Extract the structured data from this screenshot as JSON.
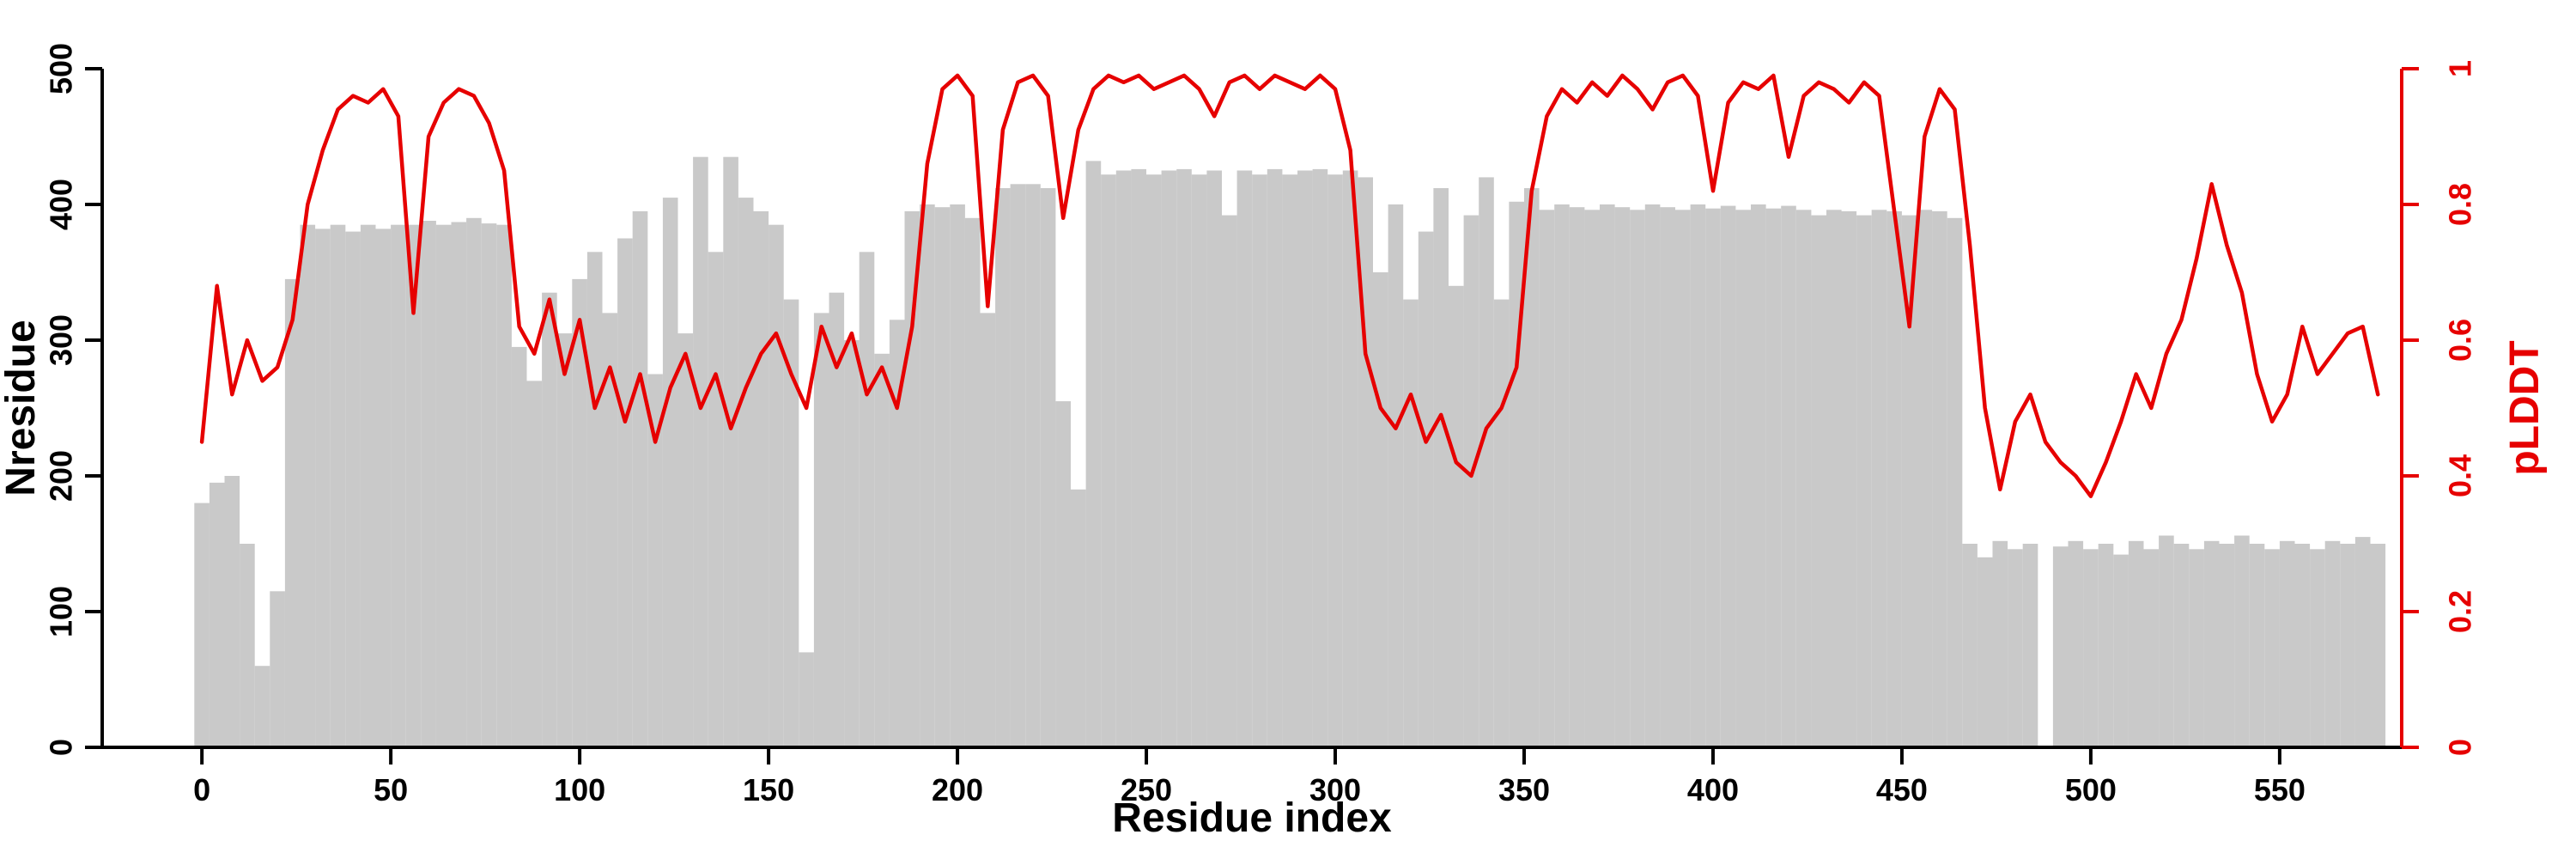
{
  "chart_data": {
    "type": "bar+line",
    "title": "",
    "xlabel": "Residue index",
    "ylabel_left": "Nresidue",
    "ylabel_right": "pLDDT",
    "xlim": [
      -26.4,
      582.3
    ],
    "ylim_left": [
      0,
      500
    ],
    "ylim_right": [
      0,
      1
    ],
    "x_ticks": [
      0,
      50,
      100,
      150,
      200,
      250,
      300,
      350,
      400,
      450,
      500,
      550
    ],
    "y_ticks_left": [
      0,
      100,
      200,
      300,
      400,
      500
    ],
    "y_ticks_right": [
      0,
      0.2,
      0.4,
      0.6,
      0.8,
      1
    ],
    "y_tick_labels_right": [
      "0",
      "0.2",
      "0.4",
      "0.6",
      "0.8",
      "1"
    ],
    "bar_color": "#c9c9c9",
    "line_color": "#e60000",
    "axis_color": "#000000",
    "grid": false,
    "legend": "none",
    "series": [
      {
        "name": "Nresidue",
        "type": "bar",
        "axis": "left",
        "x_start": 0,
        "x_step": 4,
        "values": [
          180,
          195,
          200,
          150,
          60,
          115,
          345,
          385,
          382,
          385,
          380,
          385,
          382,
          385,
          385,
          388,
          385,
          387,
          390,
          386,
          385,
          295,
          270,
          335,
          305,
          345,
          365,
          320,
          375,
          395,
          275,
          405,
          305,
          435,
          365,
          435,
          405,
          395,
          385,
          330,
          70,
          320,
          335,
          300,
          365,
          290,
          315,
          395,
          400,
          398,
          400,
          390,
          320,
          412,
          415,
          415,
          412,
          255,
          190,
          432,
          422,
          425,
          426,
          422,
          425,
          426,
          422,
          425,
          392,
          425,
          422,
          426,
          422,
          425,
          426,
          422,
          425,
          420,
          350,
          400,
          330,
          380,
          412,
          340,
          392,
          420,
          330,
          402,
          412,
          396,
          400,
          398,
          396,
          400,
          398,
          396,
          400,
          398,
          396,
          400,
          397,
          399,
          396,
          400,
          397,
          399,
          396,
          392,
          396,
          395,
          392,
          396,
          395,
          392,
          396,
          395,
          390,
          150,
          140,
          152,
          146,
          150,
          0,
          148,
          152,
          146,
          150,
          142,
          152,
          146,
          156,
          150,
          146,
          152,
          150,
          156,
          150,
          146,
          152,
          150,
          146,
          152,
          150,
          155,
          150
        ]
      },
      {
        "name": "pLDDT",
        "type": "line",
        "axis": "right",
        "x_start": 0,
        "x_step": 4,
        "values": [
          0.45,
          0.68,
          0.52,
          0.6,
          0.54,
          0.56,
          0.63,
          0.8,
          0.88,
          0.94,
          0.96,
          0.95,
          0.97,
          0.93,
          0.64,
          0.9,
          0.95,
          0.97,
          0.96,
          0.92,
          0.85,
          0.62,
          0.58,
          0.66,
          0.55,
          0.63,
          0.5,
          0.56,
          0.48,
          0.55,
          0.45,
          0.53,
          0.58,
          0.5,
          0.55,
          0.47,
          0.53,
          0.58,
          0.61,
          0.55,
          0.5,
          0.62,
          0.56,
          0.61,
          0.52,
          0.56,
          0.5,
          0.62,
          0.86,
          0.97,
          0.99,
          0.96,
          0.65,
          0.91,
          0.98,
          0.99,
          0.96,
          0.78,
          0.91,
          0.97,
          0.99,
          0.98,
          0.99,
          0.97,
          0.98,
          0.99,
          0.97,
          0.93,
          0.98,
          0.99,
          0.97,
          0.99,
          0.98,
          0.97,
          0.99,
          0.97,
          0.88,
          0.58,
          0.5,
          0.47,
          0.52,
          0.45,
          0.49,
          0.42,
          0.4,
          0.47,
          0.5,
          0.56,
          0.82,
          0.93,
          0.97,
          0.95,
          0.98,
          0.96,
          0.99,
          0.97,
          0.94,
          0.98,
          0.99,
          0.96,
          0.82,
          0.95,
          0.98,
          0.97,
          0.99,
          0.87,
          0.96,
          0.98,
          0.97,
          0.95,
          0.98,
          0.96,
          0.79,
          0.62,
          0.9,
          0.97,
          0.94,
          0.74,
          0.5,
          0.38,
          0.48,
          0.52,
          0.45,
          0.42,
          0.4,
          0.37,
          0.42,
          0.48,
          0.55,
          0.5,
          0.58,
          0.63,
          0.72,
          0.83,
          0.74,
          0.67,
          0.55,
          0.48,
          0.52,
          0.62,
          0.55,
          0.58,
          0.61,
          0.62,
          0.52
        ]
      }
    ]
  }
}
